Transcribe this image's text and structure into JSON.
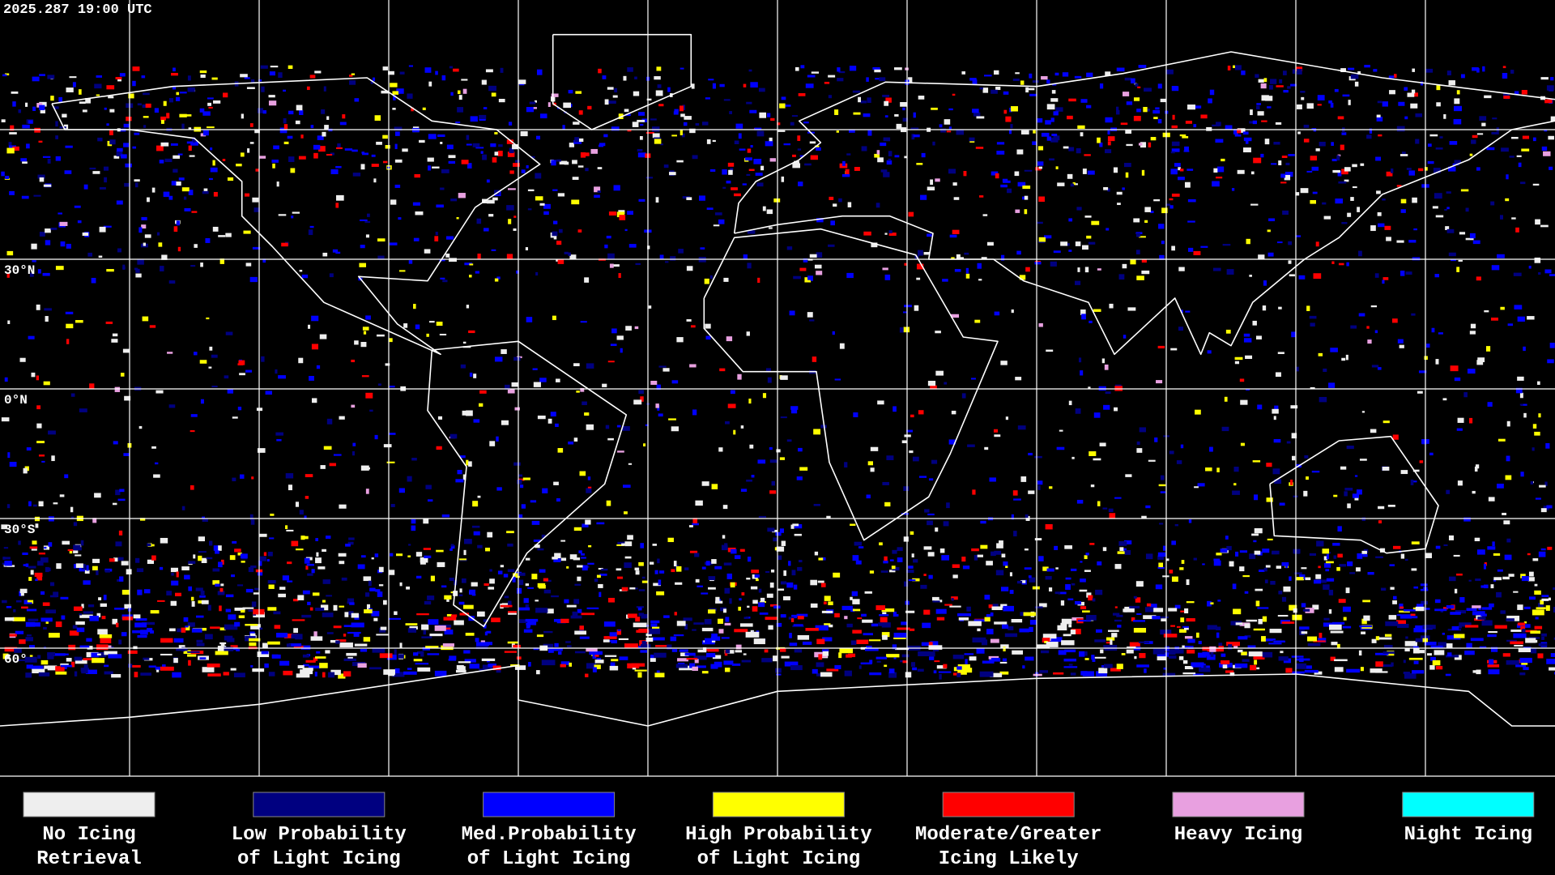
{
  "header": {
    "timestamp": "2025.287 19:00 UTC"
  },
  "map": {
    "latitude_labels": [
      "30°N",
      "0°N",
      "30°S",
      "60°"
    ]
  },
  "legend": {
    "items": [
      {
        "label": [
          "No Icing",
          "Retrieval"
        ],
        "color": "#eeeeee"
      },
      {
        "label": [
          "Low Probability",
          "of Light Icing"
        ],
        "color": "#000080"
      },
      {
        "label": [
          "Med.Probability",
          "of Light Icing"
        ],
        "color": "#0000ff"
      },
      {
        "label": [
          "High Probability",
          "of Light Icing"
        ],
        "color": "#ffff00"
      },
      {
        "label": [
          "Moderate/Greater",
          "Icing Likely"
        ],
        "color": "#ff0000"
      },
      {
        "label": [
          "Heavy Icing"
        ],
        "color": "#e8a0e0"
      },
      {
        "label": [
          "Night Icing"
        ],
        "color": "#00ffff"
      }
    ]
  }
}
